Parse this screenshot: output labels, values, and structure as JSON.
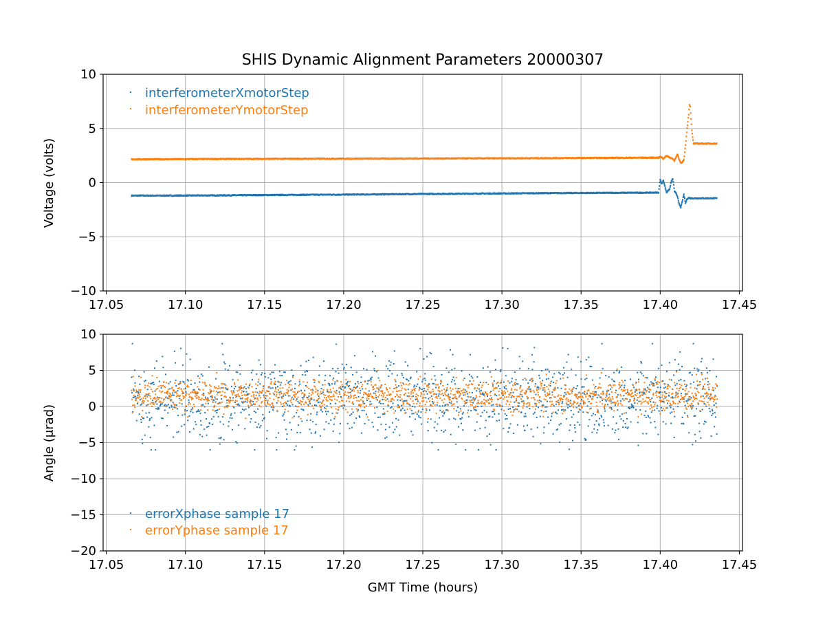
{
  "figure_title": "SHIS Dynamic Alignment Parameters 20000307",
  "chart_data": [
    {
      "type": "scatter",
      "title": "SHIS Dynamic Alignment Parameters 20000307",
      "xlabel": "",
      "ylabel": "Voltage (volts)",
      "xlim": [
        17.048,
        17.452
      ],
      "ylim": [
        -10,
        10
      ],
      "x_ticks": [
        17.05,
        17.1,
        17.15,
        17.2,
        17.25,
        17.3,
        17.35,
        17.4,
        17.45
      ],
      "x_tick_labels": [
        "17.05",
        "17.10",
        "17.15",
        "17.20",
        "17.25",
        "17.30",
        "17.35",
        "17.40",
        "17.45"
      ],
      "y_ticks": [
        10,
        5,
        0,
        -5,
        -10
      ],
      "y_tick_labels": [
        "10",
        "5",
        "0",
        "−5",
        "−10"
      ],
      "grid": true,
      "legend_position": "top-left",
      "series": [
        {
          "name": "interferometerXmotorStep",
          "color": "#1f77b4",
          "points": [
            [
              17.066,
              -1.2
            ],
            [
              17.09,
              -1.2
            ],
            [
              17.12,
              -1.18
            ],
            [
              17.15,
              -1.15
            ],
            [
              17.18,
              -1.12
            ],
            [
              17.21,
              -1.1
            ],
            [
              17.24,
              -1.06
            ],
            [
              17.27,
              -1.03
            ],
            [
              17.3,
              -1.0
            ],
            [
              17.33,
              -0.97
            ],
            [
              17.36,
              -0.95
            ],
            [
              17.39,
              -0.93
            ],
            [
              17.399,
              -0.92
            ],
            [
              17.4,
              0.3
            ],
            [
              17.401,
              -0.1
            ],
            [
              17.402,
              0.2
            ],
            [
              17.404,
              -0.9
            ],
            [
              17.406,
              -0.6
            ],
            [
              17.407,
              0.1
            ],
            [
              17.408,
              0.35
            ],
            [
              17.409,
              -0.8
            ],
            [
              17.41,
              -1.0
            ],
            [
              17.411,
              -1.3
            ],
            [
              17.412,
              -2.0
            ],
            [
              17.413,
              -2.3
            ],
            [
              17.414,
              -1.7
            ],
            [
              17.415,
              -1.1
            ],
            [
              17.416,
              -1.9
            ],
            [
              17.417,
              -1.5
            ],
            [
              17.418,
              -1.4
            ],
            [
              17.419,
              -1.45
            ],
            [
              17.42,
              -1.45
            ],
            [
              17.425,
              -1.45
            ],
            [
              17.43,
              -1.45
            ],
            [
              17.436,
              -1.45
            ]
          ]
        },
        {
          "name": "interferometerYmotorStep",
          "color": "#ff7f0e",
          "points": [
            [
              17.066,
              2.15
            ],
            [
              17.09,
              2.16
            ],
            [
              17.12,
              2.18
            ],
            [
              17.15,
              2.19
            ],
            [
              17.18,
              2.2
            ],
            [
              17.21,
              2.21
            ],
            [
              17.24,
              2.22
            ],
            [
              17.27,
              2.23
            ],
            [
              17.3,
              2.24
            ],
            [
              17.33,
              2.26
            ],
            [
              17.36,
              2.28
            ],
            [
              17.39,
              2.3
            ],
            [
              17.399,
              2.3
            ],
            [
              17.4,
              2.4
            ],
            [
              17.402,
              2.2
            ],
            [
              17.404,
              2.5
            ],
            [
              17.406,
              2.3
            ],
            [
              17.408,
              2.2
            ],
            [
              17.409,
              2.0
            ],
            [
              17.41,
              2.4
            ],
            [
              17.411,
              2.6
            ],
            [
              17.412,
              2.1
            ],
            [
              17.413,
              1.8
            ],
            [
              17.414,
              1.9
            ],
            [
              17.415,
              2.1
            ],
            [
              17.416,
              3.5
            ],
            [
              17.417,
              5.0
            ],
            [
              17.418,
              6.3
            ],
            [
              17.4185,
              7.2
            ],
            [
              17.419,
              7.0
            ],
            [
              17.42,
              4.8
            ],
            [
              17.421,
              3.6
            ],
            [
              17.425,
              3.6
            ],
            [
              17.43,
              3.6
            ],
            [
              17.436,
              3.6
            ]
          ]
        }
      ]
    },
    {
      "type": "scatter",
      "title": "",
      "xlabel": "GMT Time (hours)",
      "ylabel": "Angle (μrad)",
      "xlim": [
        17.048,
        17.452
      ],
      "ylim": [
        -20,
        10
      ],
      "x_ticks": [
        17.05,
        17.1,
        17.15,
        17.2,
        17.25,
        17.3,
        17.35,
        17.4,
        17.45
      ],
      "x_tick_labels": [
        "17.05",
        "17.10",
        "17.15",
        "17.20",
        "17.25",
        "17.30",
        "17.35",
        "17.40",
        "17.45"
      ],
      "y_ticks": [
        10,
        5,
        0,
        -5,
        -10,
        -15,
        -20
      ],
      "y_tick_labels": [
        "10",
        "5",
        "0",
        "−5",
        "−10",
        "−15",
        "−20"
      ],
      "grid": true,
      "legend_position": "bottom-left",
      "series": [
        {
          "name": "errorXphase sample 17",
          "color": "#1f77b4",
          "x_range": [
            17.066,
            17.436
          ],
          "center": 1.0,
          "spread": 2.8,
          "min": -6.0,
          "max": 8.7,
          "n_points": 1500
        },
        {
          "name": "errorYphase sample 17",
          "color": "#ff7f0e",
          "x_range": [
            17.066,
            17.436
          ],
          "center": 1.5,
          "spread": 1.1,
          "min": -2.0,
          "max": 5.5,
          "n_points": 1500
        }
      ]
    }
  ]
}
